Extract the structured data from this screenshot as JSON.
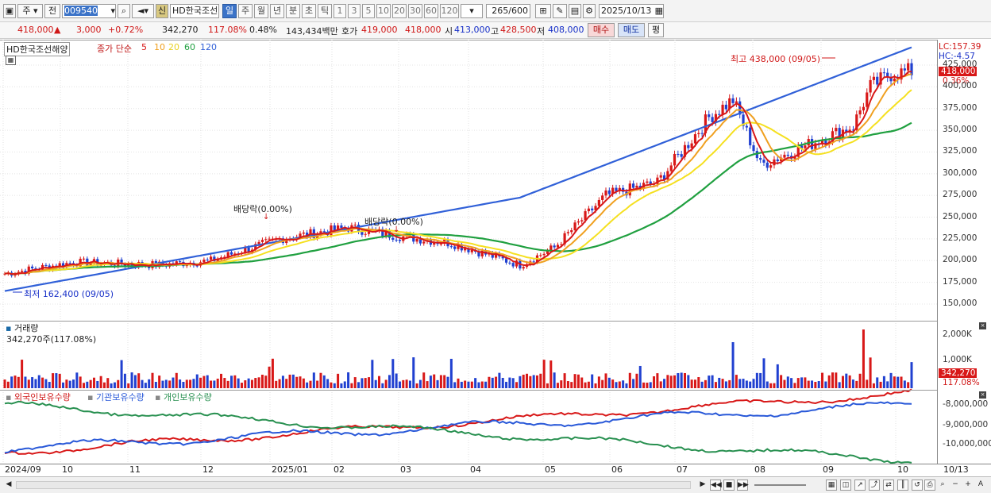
{
  "toolbar": {
    "market": "주",
    "market2": "전",
    "code": "009540",
    "name": "HD한국조선",
    "sin": "신",
    "periods": [
      "일",
      "주",
      "월",
      "년",
      "분",
      "초",
      "틱"
    ],
    "intervals": [
      "1",
      "3",
      "5",
      "10",
      "20",
      "30",
      "60",
      "120"
    ],
    "count": "265",
    "count_total": "/600",
    "date": "2025/10/13"
  },
  "ticker": {
    "price": "418,000",
    "arrow": "▲",
    "change": "3,000",
    "change_pct": "+0.72%",
    "volume": "342,270",
    "vol_ratio": "117.08%",
    "turnover": "0.48%",
    "amount": "143,434백만",
    "quote_label": "호가",
    "ask": "419,000",
    "bid": "418,000",
    "open_label": "시",
    "open": "413,000",
    "high_label": "고",
    "high": "428,500",
    "low_label": "저",
    "low": "408,000",
    "buy": "매수",
    "sell": "매도",
    "avg": "평"
  },
  "price_panel": {
    "title": "HD한국조선해양",
    "legend_prefix": "종가 단순",
    "ma": [
      "5",
      "10",
      "20",
      "60",
      "120"
    ],
    "ma_colors": [
      "#d81818",
      "#f0a020",
      "#f5e020",
      "#20a040",
      "#3060d8"
    ],
    "lc": "LC:157.39",
    "hc": "HC:-4.57",
    "cur_price": "418,000",
    "cur_pct": "0.36%",
    "high_label": "최고 438,000 (09/05)",
    "low_label": "최저 162,400 (09/05)",
    "div1": "배당락(0.00%)",
    "div2": "배당락(0.00%)",
    "yticks": [
      "425,000",
      "400,000",
      "375,000",
      "350,000",
      "325,000",
      "300,000",
      "275,000",
      "250,000",
      "225,000",
      "200,000",
      "175,000",
      "150,000"
    ]
  },
  "volume_panel": {
    "title": "거래량",
    "value": "342,270주(117.08%)",
    "yticks": [
      "2,000K",
      "1,000K"
    ],
    "cur": "342,270",
    "cur_pct": "117.08%"
  },
  "holding_panel": {
    "foreign": "외국인보유수량",
    "inst": "기관보유수량",
    "retail": "개인보유수량",
    "yticks": [
      "-8,000,000",
      "-9,000,000",
      "-10,000,000"
    ]
  },
  "xaxis": [
    "2024/09",
    "10",
    "11",
    "12",
    "2025/01",
    "02",
    "03",
    "04",
    "05",
    "06",
    "07",
    "08",
    "09",
    "10",
    "10/13"
  ]
}
